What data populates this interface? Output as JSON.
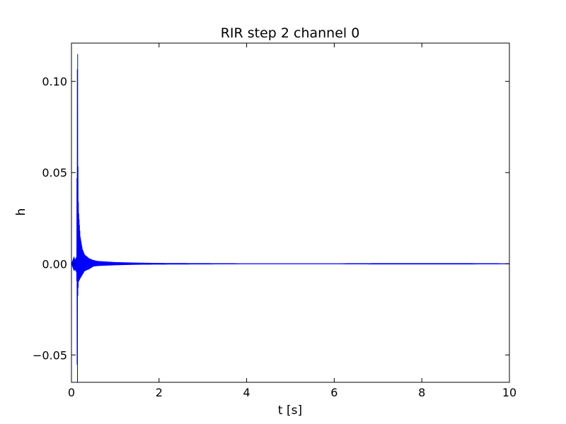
{
  "chart_data": {
    "type": "line",
    "title": "RIR step 2 channel 0",
    "xlabel": "t [s]",
    "ylabel": "h",
    "xlim": [
      0,
      10
    ],
    "ylim": [
      -0.065,
      0.121
    ],
    "x_ticks": [
      0,
      2,
      4,
      6,
      8,
      10
    ],
    "x_tick_labels": [
      "0",
      "2",
      "4",
      "6",
      "8",
      "10"
    ],
    "y_ticks": [
      -0.05,
      0.0,
      0.05,
      0.1
    ],
    "y_tick_labels": [
      "−0.05",
      "0.00",
      "0.05",
      "0.10"
    ],
    "grid": false,
    "legend": "none",
    "series": [
      {
        "color": "#0000ff",
        "envelope": {
          "t": [
            0.0,
            0.03,
            0.06,
            0.08,
            0.1,
            0.12,
            0.13,
            0.14,
            0.145,
            0.16,
            0.2,
            0.25,
            0.3,
            0.4,
            0.5,
            0.6,
            0.8,
            1.0,
            1.5,
            2.0,
            3.0,
            4.0,
            5.0,
            6.0,
            7.0,
            8.0,
            9.0,
            10.0
          ],
          "upper": [
            0.0,
            0.002,
            0.004,
            0.002,
            0.003,
            0.004,
            0.09,
            0.14,
            0.065,
            0.03,
            0.015,
            0.008,
            0.005,
            0.003,
            0.002,
            0.0015,
            0.0012,
            0.0009,
            0.0006,
            0.0004,
            0.0003,
            0.0002,
            0.0002,
            0.0002,
            0.0003,
            0.0003,
            0.0003,
            0.0002
          ],
          "lower": [
            0.0,
            -0.002,
            -0.004,
            -0.003,
            -0.004,
            -0.005,
            -0.06,
            -0.07,
            -0.018,
            -0.01,
            -0.008,
            -0.006,
            -0.004,
            -0.003,
            -0.0015,
            -0.0012,
            -0.001,
            -0.0008,
            -0.0005,
            -0.0004,
            -0.0003,
            -0.0002,
            -0.0002,
            -0.0002,
            -0.0003,
            -0.0003,
            -0.0003,
            -0.0002
          ]
        }
      }
    ]
  }
}
